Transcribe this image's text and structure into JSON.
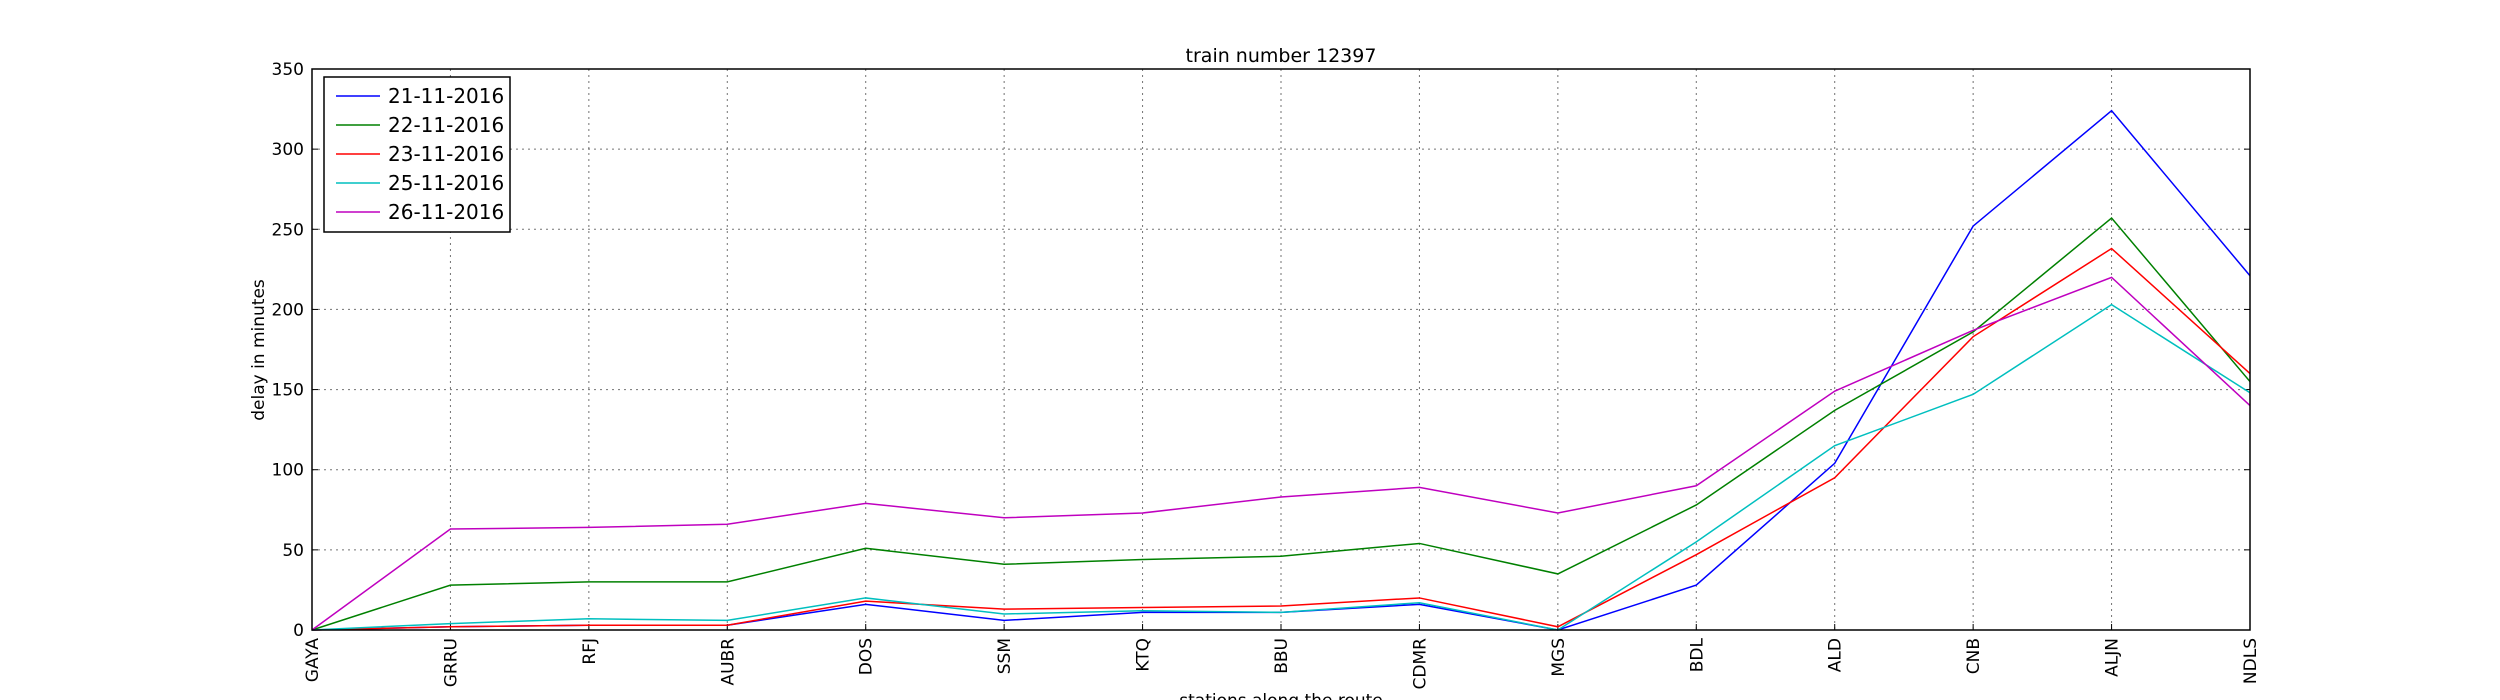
{
  "chart_data": {
    "type": "line",
    "title": "train number 12397",
    "x_label": "stations along the route",
    "y_label": "delay in minutes",
    "categories": [
      "GAYA",
      "GRRU",
      "RFJ",
      "AUBR",
      "DOS",
      "SSM",
      "KTQ",
      "BBU",
      "CDMR",
      "MGS",
      "BDL",
      "ALD",
      "CNB",
      "ALJN",
      "NDLS"
    ],
    "series": [
      {
        "name": "21-11-2016",
        "color": "#0000ff",
        "values": [
          0,
          2,
          3,
          3,
          16,
          6,
          11,
          11,
          16,
          0,
          28,
          104,
          252,
          324,
          221
        ]
      },
      {
        "name": "22-11-2016",
        "color": "#008000",
        "values": [
          0,
          28,
          30,
          30,
          51,
          41,
          44,
          46,
          54,
          35,
          78,
          137,
          186,
          257,
          155
        ]
      },
      {
        "name": "23-11-2016",
        "color": "#ff0000",
        "values": [
          0,
          2,
          3,
          3,
          18,
          13,
          14,
          15,
          20,
          2,
          47,
          95,
          183,
          238,
          160
        ]
      },
      {
        "name": "25-11-2016",
        "color": "#00bfbf",
        "values": [
          0,
          4,
          7,
          6,
          20,
          10,
          12,
          11,
          17,
          0,
          55,
          115,
          147,
          203,
          148
        ]
      },
      {
        "name": "26-11-2016",
        "color": "#bf00bf",
        "values": [
          0,
          63,
          64,
          66,
          79,
          70,
          73,
          83,
          89,
          73,
          90,
          149,
          187,
          220,
          140
        ]
      }
    ],
    "ylim": [
      0,
      350
    ],
    "yticks": [
      0,
      50,
      100,
      150,
      200,
      250,
      300,
      350
    ],
    "grid": true,
    "legend": "upper left"
  }
}
